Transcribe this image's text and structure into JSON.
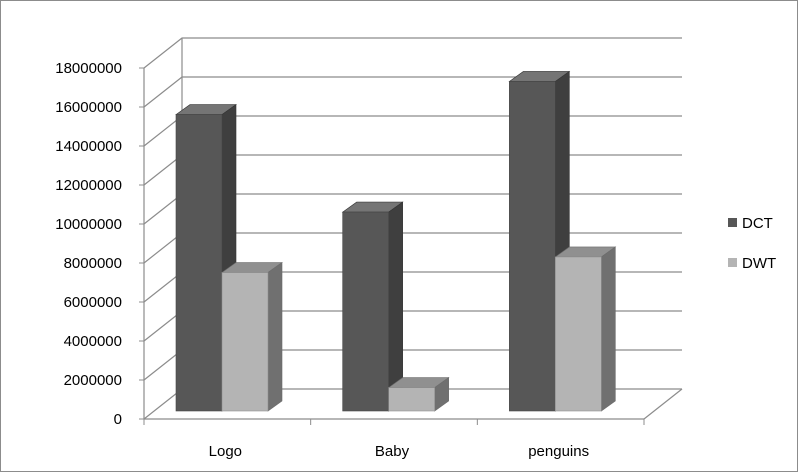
{
  "chart_data": {
    "type": "bar",
    "style": "3d-clustered-column",
    "categories": [
      "Logo",
      "Baby",
      "penguins"
    ],
    "series": [
      {
        "name": "DCT",
        "values": [
          15200000,
          10200000,
          16900000
        ],
        "color": "#575757"
      },
      {
        "name": "DWT",
        "values": [
          7100000,
          1200000,
          7900000
        ],
        "color": "#b4b4b4"
      }
    ],
    "y_ticks": [
      "0",
      "2000000",
      "4000000",
      "6000000",
      "8000000",
      "10000000",
      "12000000",
      "14000000",
      "16000000",
      "18000000"
    ],
    "ylim": [
      0,
      18000000
    ],
    "grid": true,
    "legend": "right",
    "title": "",
    "xlabel": "",
    "ylabel": ""
  }
}
